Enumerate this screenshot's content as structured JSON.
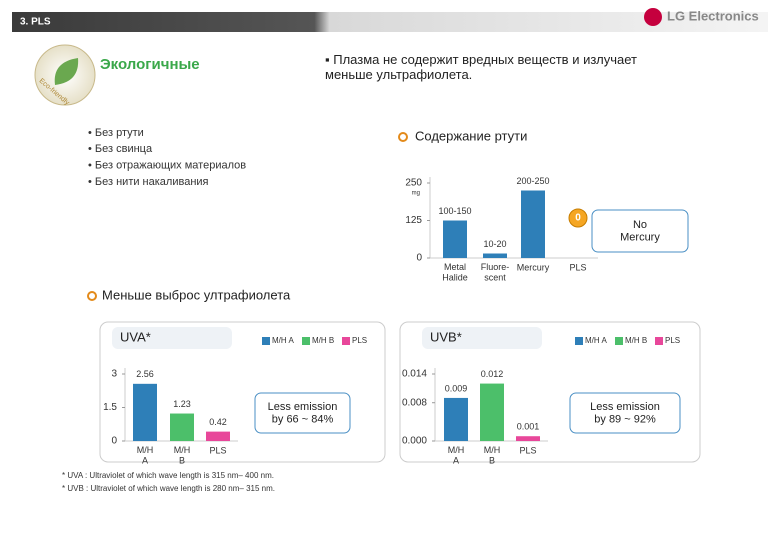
{
  "header": {
    "section": "3. PLS",
    "brand": "LG Electronics"
  },
  "eco": {
    "title": "Экологичные",
    "badge": "Eco-friendly",
    "bullets": [
      "• Без ртути",
      "• Без свинца",
      "• Без отражающих материалов",
      "• Без нити накаливания"
    ]
  },
  "statement": "▪ Плазма не содержит вредных веществ и излучает\nменьше ультрафиолета.",
  "uv_heading": "Меньше выброс ултрафиолета",
  "footnotes": [
    "* UVA : Ultraviolet of which wave length is 315 nm– 400 nm.",
    "* UVB : Ultraviolet of which wave length is 280 nm– 315 nm."
  ],
  "chart_data": [
    {
      "type": "bar",
      "title": "Содержание ртути",
      "y_label": "mg",
      "categories": [
        "Metal\nHalide",
        "Fluore-\nscent",
        "Mercury",
        "PLS"
      ],
      "values": [
        125,
        15,
        225,
        0
      ],
      "value_labels": [
        "100-150",
        "10-20",
        "200-250",
        "0"
      ],
      "color": "#2e7fb8",
      "ylim": [
        0,
        250
      ],
      "yticks": [
        0,
        125,
        250
      ],
      "callout": "No\nMercury"
    },
    {
      "type": "bar",
      "title": "UVA*",
      "categories": [
        "M/H\nA",
        "M/H\nB",
        "PLS"
      ],
      "values": [
        2.56,
        1.23,
        0.42
      ],
      "colors": [
        "#2e7fb8",
        "#4cbf6a",
        "#e8479a"
      ],
      "legend": [
        "M/H A",
        "M/H B",
        "PLS"
      ],
      "ylim": [
        0,
        3
      ],
      "yticks": [
        0,
        1.5,
        3
      ],
      "callout": "Less emission\nby 66 ~ 84%"
    },
    {
      "type": "bar",
      "title": "UVB*",
      "categories": [
        "M/H\nA",
        "M/H\nB",
        "PLS"
      ],
      "values": [
        0.009,
        0.012,
        0.001
      ],
      "colors": [
        "#2e7fb8",
        "#4cbf6a",
        "#e8479a"
      ],
      "legend": [
        "M/H A",
        "M/H B",
        "PLS"
      ],
      "ylim": [
        0,
        0.014
      ],
      "yticks": [
        {
          "value": 0,
          "label": "0.000"
        },
        0.008,
        0.014
      ],
      "callout": "Less emission\nby 89 ~ 92%"
    }
  ]
}
